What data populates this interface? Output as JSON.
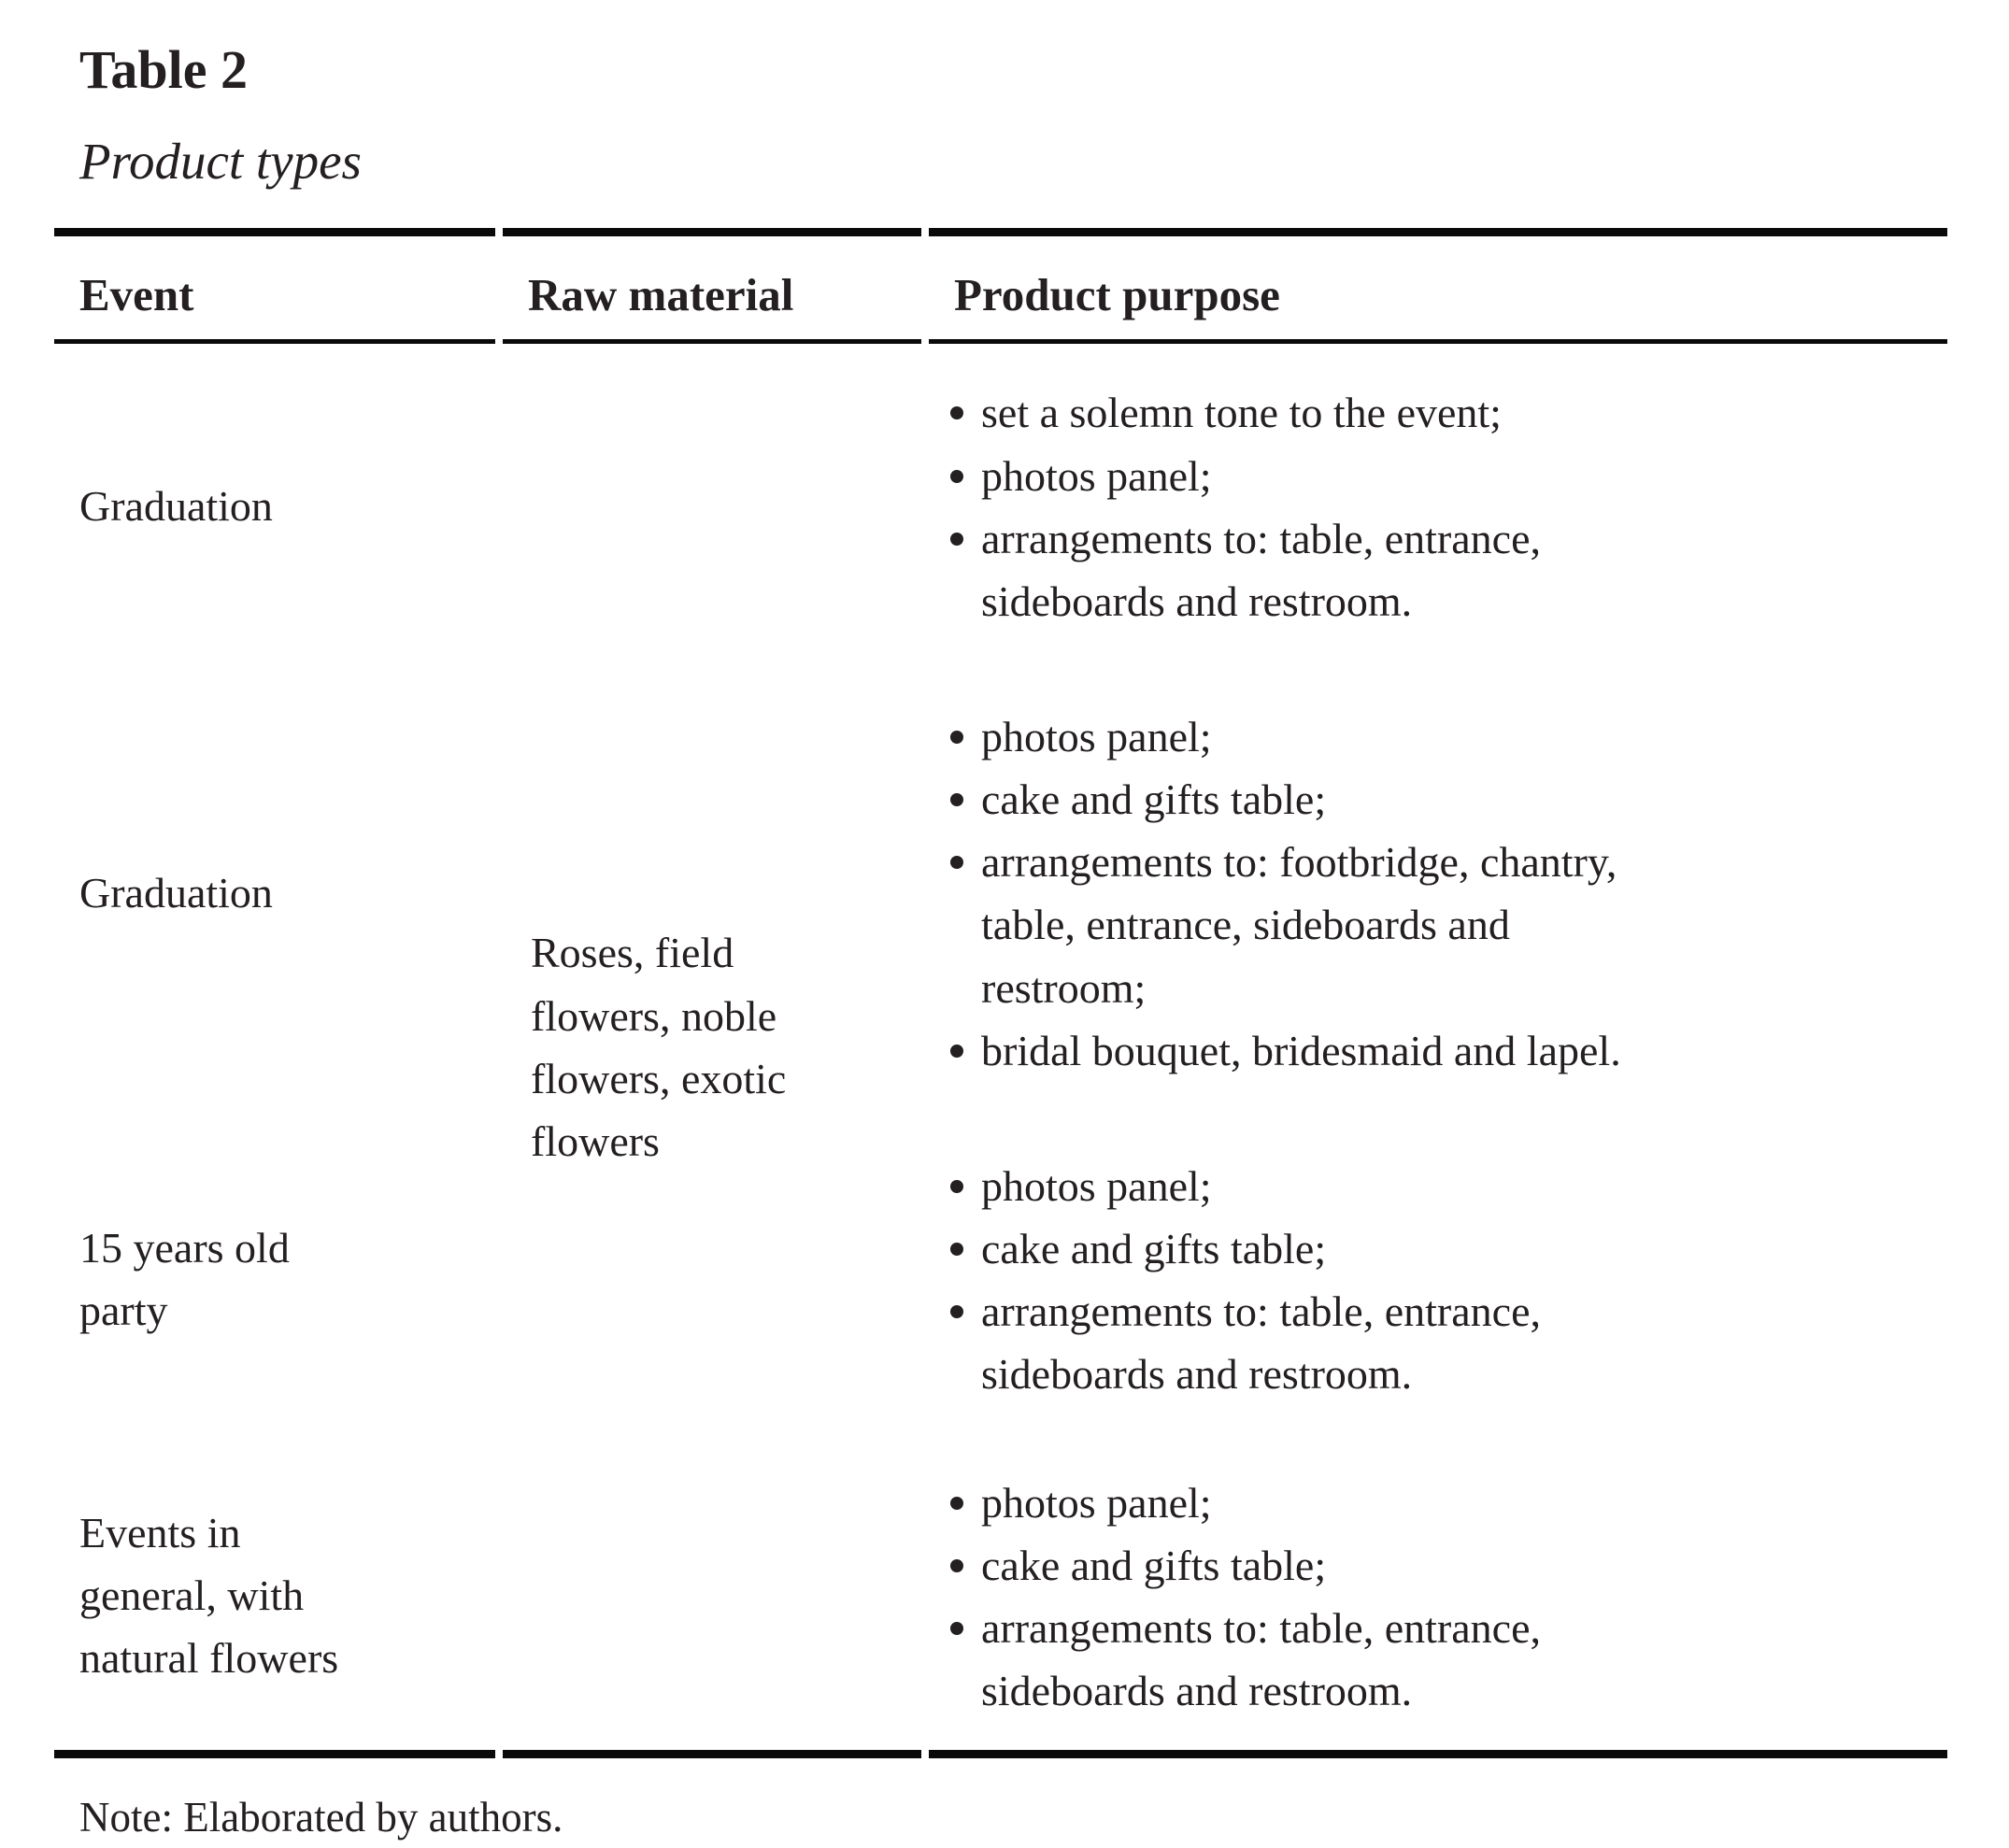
{
  "title": "Table 2",
  "subtitle": "Product types",
  "note": "Note: Elaborated by authors.",
  "table": {
    "headers": [
      "Event",
      "Raw material",
      "Product purpose"
    ],
    "raw_material": "Roses, field\nflowers, noble\nflowers, exotic\nflowers",
    "rows": [
      {
        "event": "Graduation",
        "purpose": [
          "set a solemn tone to the event;",
          "photos panel;",
          "arrangements to: table, entrance,\nsideboards and restroom."
        ]
      },
      {
        "event": "Graduation",
        "purpose": [
          "photos panel;",
          "cake and gifts table;",
          "arrangements to: footbridge, chantry,\ntable, entrance, sideboards and\nrestroom;",
          "bridal bouquet, bridesmaid and lapel."
        ]
      },
      {
        "event": "15 years old\nparty",
        "purpose": [
          "photos panel;",
          "cake and gifts table;",
          "arrangements to: table, entrance,\nsideboards and restroom."
        ]
      },
      {
        "event": "Events in\ngeneral, with\nnatural flowers",
        "purpose": [
          "photos panel;",
          "cake and gifts table;",
          "arrangements to: table, entrance,\nsideboards and restroom."
        ]
      }
    ],
    "colors": {
      "text": "#241f21",
      "rule": "#0a0a0a",
      "background": "#ffffff"
    }
  }
}
